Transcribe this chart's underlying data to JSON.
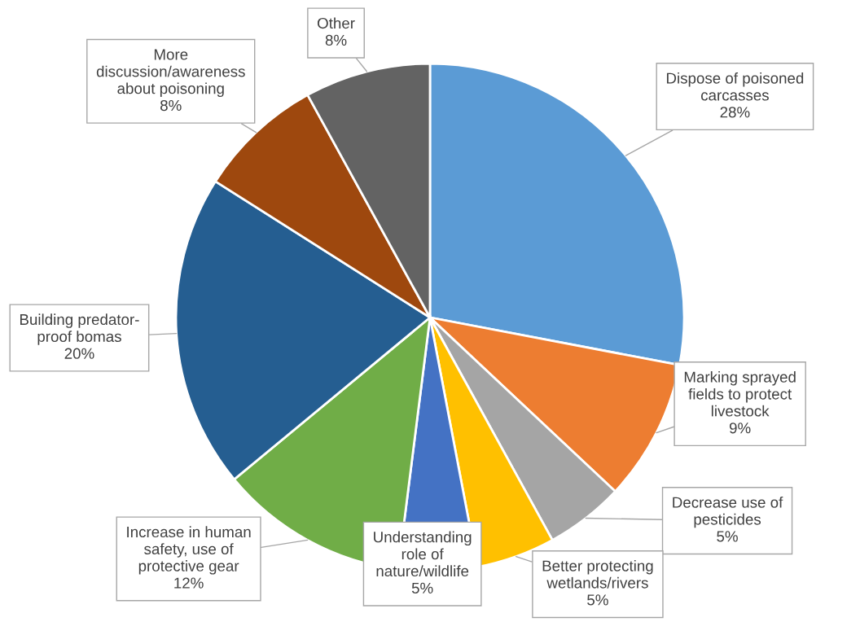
{
  "chart_data": {
    "type": "pie",
    "categories": [
      "Dispose of poisoned\ncarcasses",
      "Marking sprayed\nfields to protect\nlivestock",
      "Decrease use of\npesticides",
      "Better protecting\nwetlands/rivers",
      "Understanding\nrole of\nnature/wildlife",
      "Increase in human\nsafety, use of\nprotective gear",
      "Building predator-\nproof bomas",
      "More\ndiscussion/awareness\nabout poisoning",
      "Other"
    ],
    "values": [
      28,
      9,
      5,
      5,
      5,
      12,
      20,
      8,
      8
    ],
    "value_labels": [
      "28%",
      "9%",
      "5%",
      "5%",
      "5%",
      "12%",
      "20%",
      "8%",
      "8%"
    ],
    "colors": [
      "#5b9bd5",
      "#ed7d31",
      "#a5a5a5",
      "#ffc000",
      "#4472c4",
      "#70ad47",
      "#255e91",
      "#9e480e",
      "#636363"
    ],
    "legend": false
  }
}
